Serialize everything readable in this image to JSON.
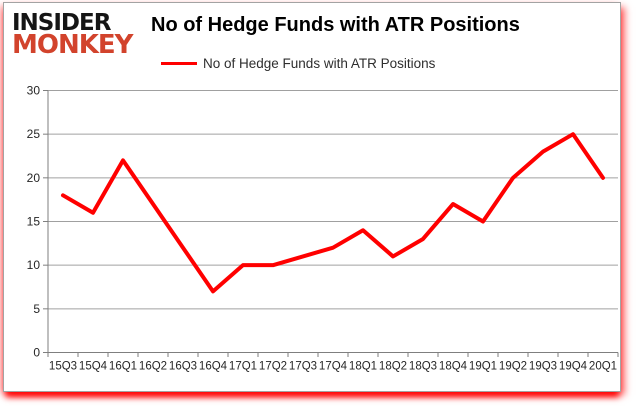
{
  "logo": {
    "line1": "INSIDER",
    "line2": "MONKEY"
  },
  "header": {
    "title": "No of Hedge Funds with ATR Positions"
  },
  "legend": {
    "label": "No of Hedge Funds with ATR Positions"
  },
  "colors": {
    "line_red": "#ff0000",
    "logo_red": "#d2432c",
    "gridline": "#a0a0a0",
    "axis": "#7f7f7f",
    "tick_label": "#262626"
  },
  "chart_data": {
    "type": "line",
    "title": "No of Hedge Funds with ATR Positions",
    "categories": [
      "15Q3",
      "15Q4",
      "16Q1",
      "16Q2",
      "16Q3",
      "16Q4",
      "17Q1",
      "17Q2",
      "17Q3",
      "17Q4",
      "18Q1",
      "18Q2",
      "18Q3",
      "18Q4",
      "19Q1",
      "19Q2",
      "19Q3",
      "19Q4",
      "20Q1"
    ],
    "series": [
      {
        "name": "No of Hedge Funds with ATR Positions",
        "values": [
          18,
          16,
          22,
          17,
          12,
          7,
          10,
          10,
          11,
          12,
          14,
          11,
          13,
          17,
          15,
          20,
          23,
          25,
          20
        ]
      }
    ],
    "xlabel": "",
    "ylabel": "",
    "ylim": [
      0,
      30
    ],
    "y_ticks": [
      0,
      5,
      10,
      15,
      20,
      25,
      30
    ],
    "grid": true,
    "legend_position": "top",
    "line_color": "#ff0000"
  }
}
